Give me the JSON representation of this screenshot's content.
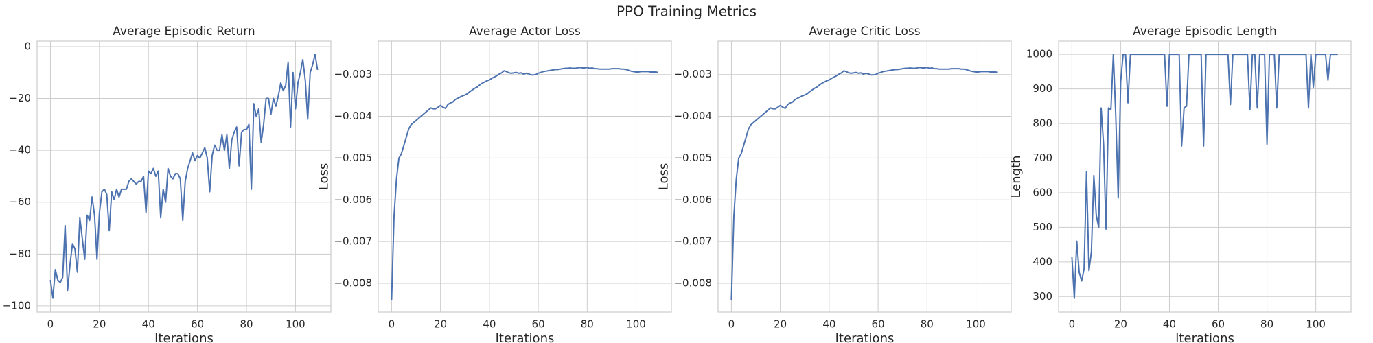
{
  "title": "PPO Training Metrics",
  "chart_data": [
    {
      "type": "line",
      "title": "Average Episodic Return",
      "xlabel": "Iterations",
      "color": "#4c72b0",
      "grid": true,
      "xlim": [
        -5.45,
        114.45
      ],
      "xticks": [
        0,
        20,
        40,
        60,
        80,
        100
      ],
      "ylim": [
        -102.4,
        2.1
      ],
      "yticks": [
        {
          "value": -100,
          "label": "−100"
        },
        {
          "value": -80,
          "label": "−80"
        },
        {
          "value": -60,
          "label": "−60"
        },
        {
          "value": -40,
          "label": "−40"
        },
        {
          "value": -20,
          "label": "−20"
        },
        0
      ],
      "x": [
        0,
        1,
        2,
        3,
        4,
        5,
        6,
        7,
        8,
        9,
        10,
        11,
        12,
        13,
        14,
        15,
        16,
        17,
        18,
        19,
        20,
        21,
        22,
        23,
        24,
        25,
        26,
        27,
        28,
        29,
        30,
        31,
        32,
        33,
        34,
        35,
        36,
        37,
        38,
        39,
        40,
        41,
        42,
        43,
        44,
        45,
        46,
        47,
        48,
        49,
        50,
        51,
        52,
        53,
        54,
        55,
        56,
        57,
        58,
        59,
        60,
        61,
        62,
        63,
        64,
        65,
        66,
        67,
        68,
        69,
        70,
        71,
        72,
        73,
        74,
        75,
        76,
        77,
        78,
        79,
        80,
        81,
        82,
        83,
        84,
        85,
        86,
        87,
        88,
        89,
        90,
        91,
        92,
        93,
        94,
        95,
        96,
        97,
        98,
        99,
        100,
        101,
        102,
        103,
        104,
        105,
        106,
        107,
        108,
        109
      ],
      "values": [
        -90,
        -97,
        -86,
        -90,
        -91,
        -89,
        -69,
        -94,
        -84,
        -76,
        -78,
        -87,
        -66,
        -74,
        -82,
        -65,
        -67,
        -58,
        -65,
        -82,
        -64,
        -56,
        -55,
        -57,
        -71,
        -56,
        -59,
        -55,
        -58,
        -55,
        -55,
        -55,
        -52,
        -51,
        -52,
        -53,
        -52,
        -52,
        -50,
        -64,
        -48,
        -49,
        -47,
        -50,
        -48,
        -66,
        -55,
        -60,
        -47,
        -50,
        -51,
        -49,
        -49,
        -51,
        -67,
        -52,
        -47,
        -44,
        -41,
        -44,
        -42,
        -43,
        -41,
        -39,
        -43,
        -56,
        -42,
        -38,
        -40,
        -40,
        -34,
        -40,
        -34,
        -47,
        -36,
        -33,
        -31,
        -46,
        -33,
        -32,
        -32,
        -30,
        -55,
        -22,
        -27,
        -24,
        -37,
        -30,
        -20,
        -20,
        -26,
        -20,
        -23,
        -19,
        -14,
        -17,
        -15,
        -6,
        -31,
        -10,
        -24,
        -14,
        -10,
        -5,
        -13,
        -28,
        -10,
        -7,
        -3,
        -9
      ]
    },
    {
      "type": "line",
      "title": "Average Actor Loss",
      "xlabel": "Iterations",
      "ylabel": "Loss",
      "color": "#4c72b0",
      "grid": true,
      "xlim": [
        -5.45,
        114.45
      ],
      "xticks": [
        0,
        20,
        40,
        60,
        80,
        100
      ],
      "ylim": [
        -0.00869,
        -0.0022
      ],
      "yticks": [
        {
          "value": -0.008,
          "label": "−0.008"
        },
        {
          "value": -0.007,
          "label": "−0.007"
        },
        {
          "value": -0.006,
          "label": "−0.006"
        },
        {
          "value": -0.005,
          "label": "−0.005"
        },
        {
          "value": -0.004,
          "label": "−0.004"
        },
        {
          "value": -0.003,
          "label": "−0.003"
        }
      ],
      "x": [
        0,
        1,
        2,
        3,
        4,
        5,
        6,
        7,
        8,
        9,
        10,
        11,
        12,
        13,
        14,
        15,
        16,
        17,
        18,
        19,
        20,
        21,
        22,
        23,
        24,
        25,
        26,
        27,
        28,
        29,
        30,
        31,
        32,
        33,
        34,
        35,
        36,
        37,
        38,
        39,
        40,
        41,
        42,
        43,
        44,
        45,
        46,
        47,
        48,
        49,
        50,
        51,
        52,
        53,
        54,
        55,
        56,
        57,
        58,
        59,
        60,
        61,
        62,
        63,
        64,
        65,
        66,
        67,
        68,
        69,
        70,
        71,
        72,
        73,
        74,
        75,
        76,
        77,
        78,
        79,
        80,
        81,
        82,
        83,
        84,
        85,
        86,
        87,
        88,
        89,
        90,
        91,
        92,
        93,
        94,
        95,
        96,
        97,
        98,
        99,
        100,
        101,
        102,
        103,
        104,
        105,
        106,
        107,
        108,
        109
      ],
      "values": [
        -0.0084,
        -0.0064,
        -0.0055,
        -0.005,
        -0.0049,
        -0.0047,
        -0.0045,
        -0.0043,
        -0.0042,
        -0.00415,
        -0.0041,
        -0.00405,
        -0.004,
        -0.00395,
        -0.0039,
        -0.00385,
        -0.0038,
        -0.00382,
        -0.00382,
        -0.00378,
        -0.00374,
        -0.00378,
        -0.00381,
        -0.00372,
        -0.00368,
        -0.00366,
        -0.0036,
        -0.00357,
        -0.00354,
        -0.00351,
        -0.00349,
        -0.00346,
        -0.00341,
        -0.00337,
        -0.00333,
        -0.0033,
        -0.00325,
        -0.00321,
        -0.00318,
        -0.00315,
        -0.00313,
        -0.00309,
        -0.00306,
        -0.00303,
        -0.00299,
        -0.00296,
        -0.00291,
        -0.00293,
        -0.00296,
        -0.00297,
        -0.00296,
        -0.00295,
        -0.00297,
        -0.00296,
        -0.00299,
        -0.00297,
        -0.00298,
        -0.00301,
        -0.00301,
        -0.003,
        -0.00297,
        -0.00295,
        -0.00293,
        -0.00292,
        -0.00291,
        -0.0029,
        -0.00289,
        -0.00288,
        -0.00288,
        -0.00287,
        -0.00286,
        -0.00285,
        -0.00285,
        -0.00284,
        -0.00285,
        -0.00285,
        -0.00284,
        -0.00283,
        -0.00284,
        -0.00284,
        -0.00283,
        -0.00285,
        -0.00284,
        -0.00286,
        -0.00286,
        -0.00287,
        -0.00287,
        -0.00287,
        -0.00287,
        -0.00287,
        -0.00286,
        -0.00286,
        -0.00286,
        -0.00286,
        -0.00287,
        -0.00287,
        -0.00288,
        -0.0029,
        -0.00292,
        -0.00293,
        -0.00294,
        -0.00294,
        -0.00293,
        -0.00293,
        -0.00293,
        -0.00293,
        -0.00294,
        -0.00294,
        -0.00294,
        -0.00295
      ]
    },
    {
      "type": "line",
      "title": "Average Critic Loss",
      "xlabel": "Iterations",
      "ylabel": "Loss",
      "color": "#4c72b0",
      "grid": true,
      "xlim": [
        -5.45,
        114.45
      ],
      "xticks": [
        0,
        20,
        40,
        60,
        80,
        100
      ],
      "ylim": [
        -0.00869,
        -0.0022
      ],
      "yticks": [
        {
          "value": -0.008,
          "label": "−0.008"
        },
        {
          "value": -0.007,
          "label": "−0.007"
        },
        {
          "value": -0.006,
          "label": "−0.006"
        },
        {
          "value": -0.005,
          "label": "−0.005"
        },
        {
          "value": -0.004,
          "label": "−0.004"
        },
        {
          "value": -0.003,
          "label": "−0.003"
        }
      ],
      "x": [
        0,
        1,
        2,
        3,
        4,
        5,
        6,
        7,
        8,
        9,
        10,
        11,
        12,
        13,
        14,
        15,
        16,
        17,
        18,
        19,
        20,
        21,
        22,
        23,
        24,
        25,
        26,
        27,
        28,
        29,
        30,
        31,
        32,
        33,
        34,
        35,
        36,
        37,
        38,
        39,
        40,
        41,
        42,
        43,
        44,
        45,
        46,
        47,
        48,
        49,
        50,
        51,
        52,
        53,
        54,
        55,
        56,
        57,
        58,
        59,
        60,
        61,
        62,
        63,
        64,
        65,
        66,
        67,
        68,
        69,
        70,
        71,
        72,
        73,
        74,
        75,
        76,
        77,
        78,
        79,
        80,
        81,
        82,
        83,
        84,
        85,
        86,
        87,
        88,
        89,
        90,
        91,
        92,
        93,
        94,
        95,
        96,
        97,
        98,
        99,
        100,
        101,
        102,
        103,
        104,
        105,
        106,
        107,
        108,
        109
      ],
      "values": [
        -0.0084,
        -0.0064,
        -0.0055,
        -0.005,
        -0.0049,
        -0.0047,
        -0.0045,
        -0.0043,
        -0.0042,
        -0.00415,
        -0.0041,
        -0.00405,
        -0.004,
        -0.00395,
        -0.0039,
        -0.00385,
        -0.0038,
        -0.00382,
        -0.00382,
        -0.00378,
        -0.00374,
        -0.00378,
        -0.00381,
        -0.00372,
        -0.00368,
        -0.00366,
        -0.0036,
        -0.00357,
        -0.00354,
        -0.00351,
        -0.00349,
        -0.00346,
        -0.00341,
        -0.00337,
        -0.00333,
        -0.0033,
        -0.00325,
        -0.00321,
        -0.00318,
        -0.00315,
        -0.00313,
        -0.00309,
        -0.00306,
        -0.00303,
        -0.00299,
        -0.00296,
        -0.00291,
        -0.00293,
        -0.00296,
        -0.00297,
        -0.00296,
        -0.00295,
        -0.00297,
        -0.00296,
        -0.00299,
        -0.00297,
        -0.00298,
        -0.00301,
        -0.00301,
        -0.003,
        -0.00297,
        -0.00295,
        -0.00293,
        -0.00292,
        -0.00291,
        -0.0029,
        -0.00289,
        -0.00288,
        -0.00288,
        -0.00287,
        -0.00286,
        -0.00285,
        -0.00285,
        -0.00284,
        -0.00285,
        -0.00285,
        -0.00284,
        -0.00283,
        -0.00284,
        -0.00284,
        -0.00283,
        -0.00285,
        -0.00284,
        -0.00286,
        -0.00286,
        -0.00287,
        -0.00287,
        -0.00287,
        -0.00287,
        -0.00287,
        -0.00286,
        -0.00286,
        -0.00286,
        -0.00286,
        -0.00287,
        -0.00287,
        -0.00288,
        -0.0029,
        -0.00292,
        -0.00293,
        -0.00294,
        -0.00294,
        -0.00293,
        -0.00293,
        -0.00293,
        -0.00293,
        -0.00294,
        -0.00294,
        -0.00294,
        -0.00295
      ]
    },
    {
      "type": "line",
      "title": "Average Episodic Length",
      "xlabel": "Iterations",
      "ylabel": "Length",
      "color": "#4c72b0",
      "grid": true,
      "xlim": [
        -5.45,
        114.45
      ],
      "xticks": [
        0,
        20,
        40,
        60,
        80,
        100
      ],
      "ylim": [
        255,
        1038
      ],
      "yticks": [
        300,
        400,
        500,
        600,
        700,
        800,
        900,
        1000
      ],
      "x": [
        0,
        1,
        2,
        3,
        4,
        5,
        6,
        7,
        8,
        9,
        10,
        11,
        12,
        13,
        14,
        15,
        16,
        17,
        18,
        19,
        20,
        21,
        22,
        23,
        24,
        25,
        26,
        27,
        28,
        29,
        30,
        31,
        32,
        33,
        34,
        35,
        36,
        37,
        38,
        39,
        40,
        41,
        42,
        43,
        44,
        45,
        46,
        47,
        48,
        49,
        50,
        51,
        52,
        53,
        54,
        55,
        56,
        57,
        58,
        59,
        60,
        61,
        62,
        63,
        64,
        65,
        66,
        67,
        68,
        69,
        70,
        71,
        72,
        73,
        74,
        75,
        76,
        77,
        78,
        79,
        80,
        81,
        82,
        83,
        84,
        85,
        86,
        87,
        88,
        89,
        90,
        91,
        92,
        93,
        94,
        95,
        96,
        97,
        98,
        99,
        100,
        101,
        102,
        103,
        104,
        105,
        106,
        107,
        108,
        109
      ],
      "values": [
        415,
        295,
        460,
        370,
        345,
        380,
        660,
        375,
        430,
        650,
        535,
        500,
        845,
        740,
        495,
        845,
        840,
        1000,
        820,
        585,
        920,
        1000,
        1000,
        860,
        1000,
        1000,
        1000,
        1000,
        1000,
        1000,
        1000,
        1000,
        1000,
        1000,
        1000,
        1000,
        1000,
        1000,
        1000,
        850,
        1000,
        1000,
        1000,
        1000,
        1000,
        735,
        845,
        850,
        1000,
        1000,
        1000,
        1000,
        1000,
        1000,
        735,
        1000,
        1000,
        1000,
        1000,
        1000,
        1000,
        1000,
        1000,
        1000,
        1000,
        855,
        1000,
        1000,
        1000,
        1000,
        1000,
        1000,
        1000,
        840,
        1000,
        1000,
        845,
        1000,
        1000,
        1000,
        740,
        1000,
        1000,
        1000,
        845,
        1000,
        1000,
        1000,
        1000,
        1000,
        1000,
        1000,
        1000,
        1000,
        1000,
        1000,
        1000,
        845,
        1000,
        905,
        1000,
        1000,
        1000,
        1000,
        1000,
        925,
        1000,
        1000,
        1000,
        1000
      ]
    }
  ]
}
